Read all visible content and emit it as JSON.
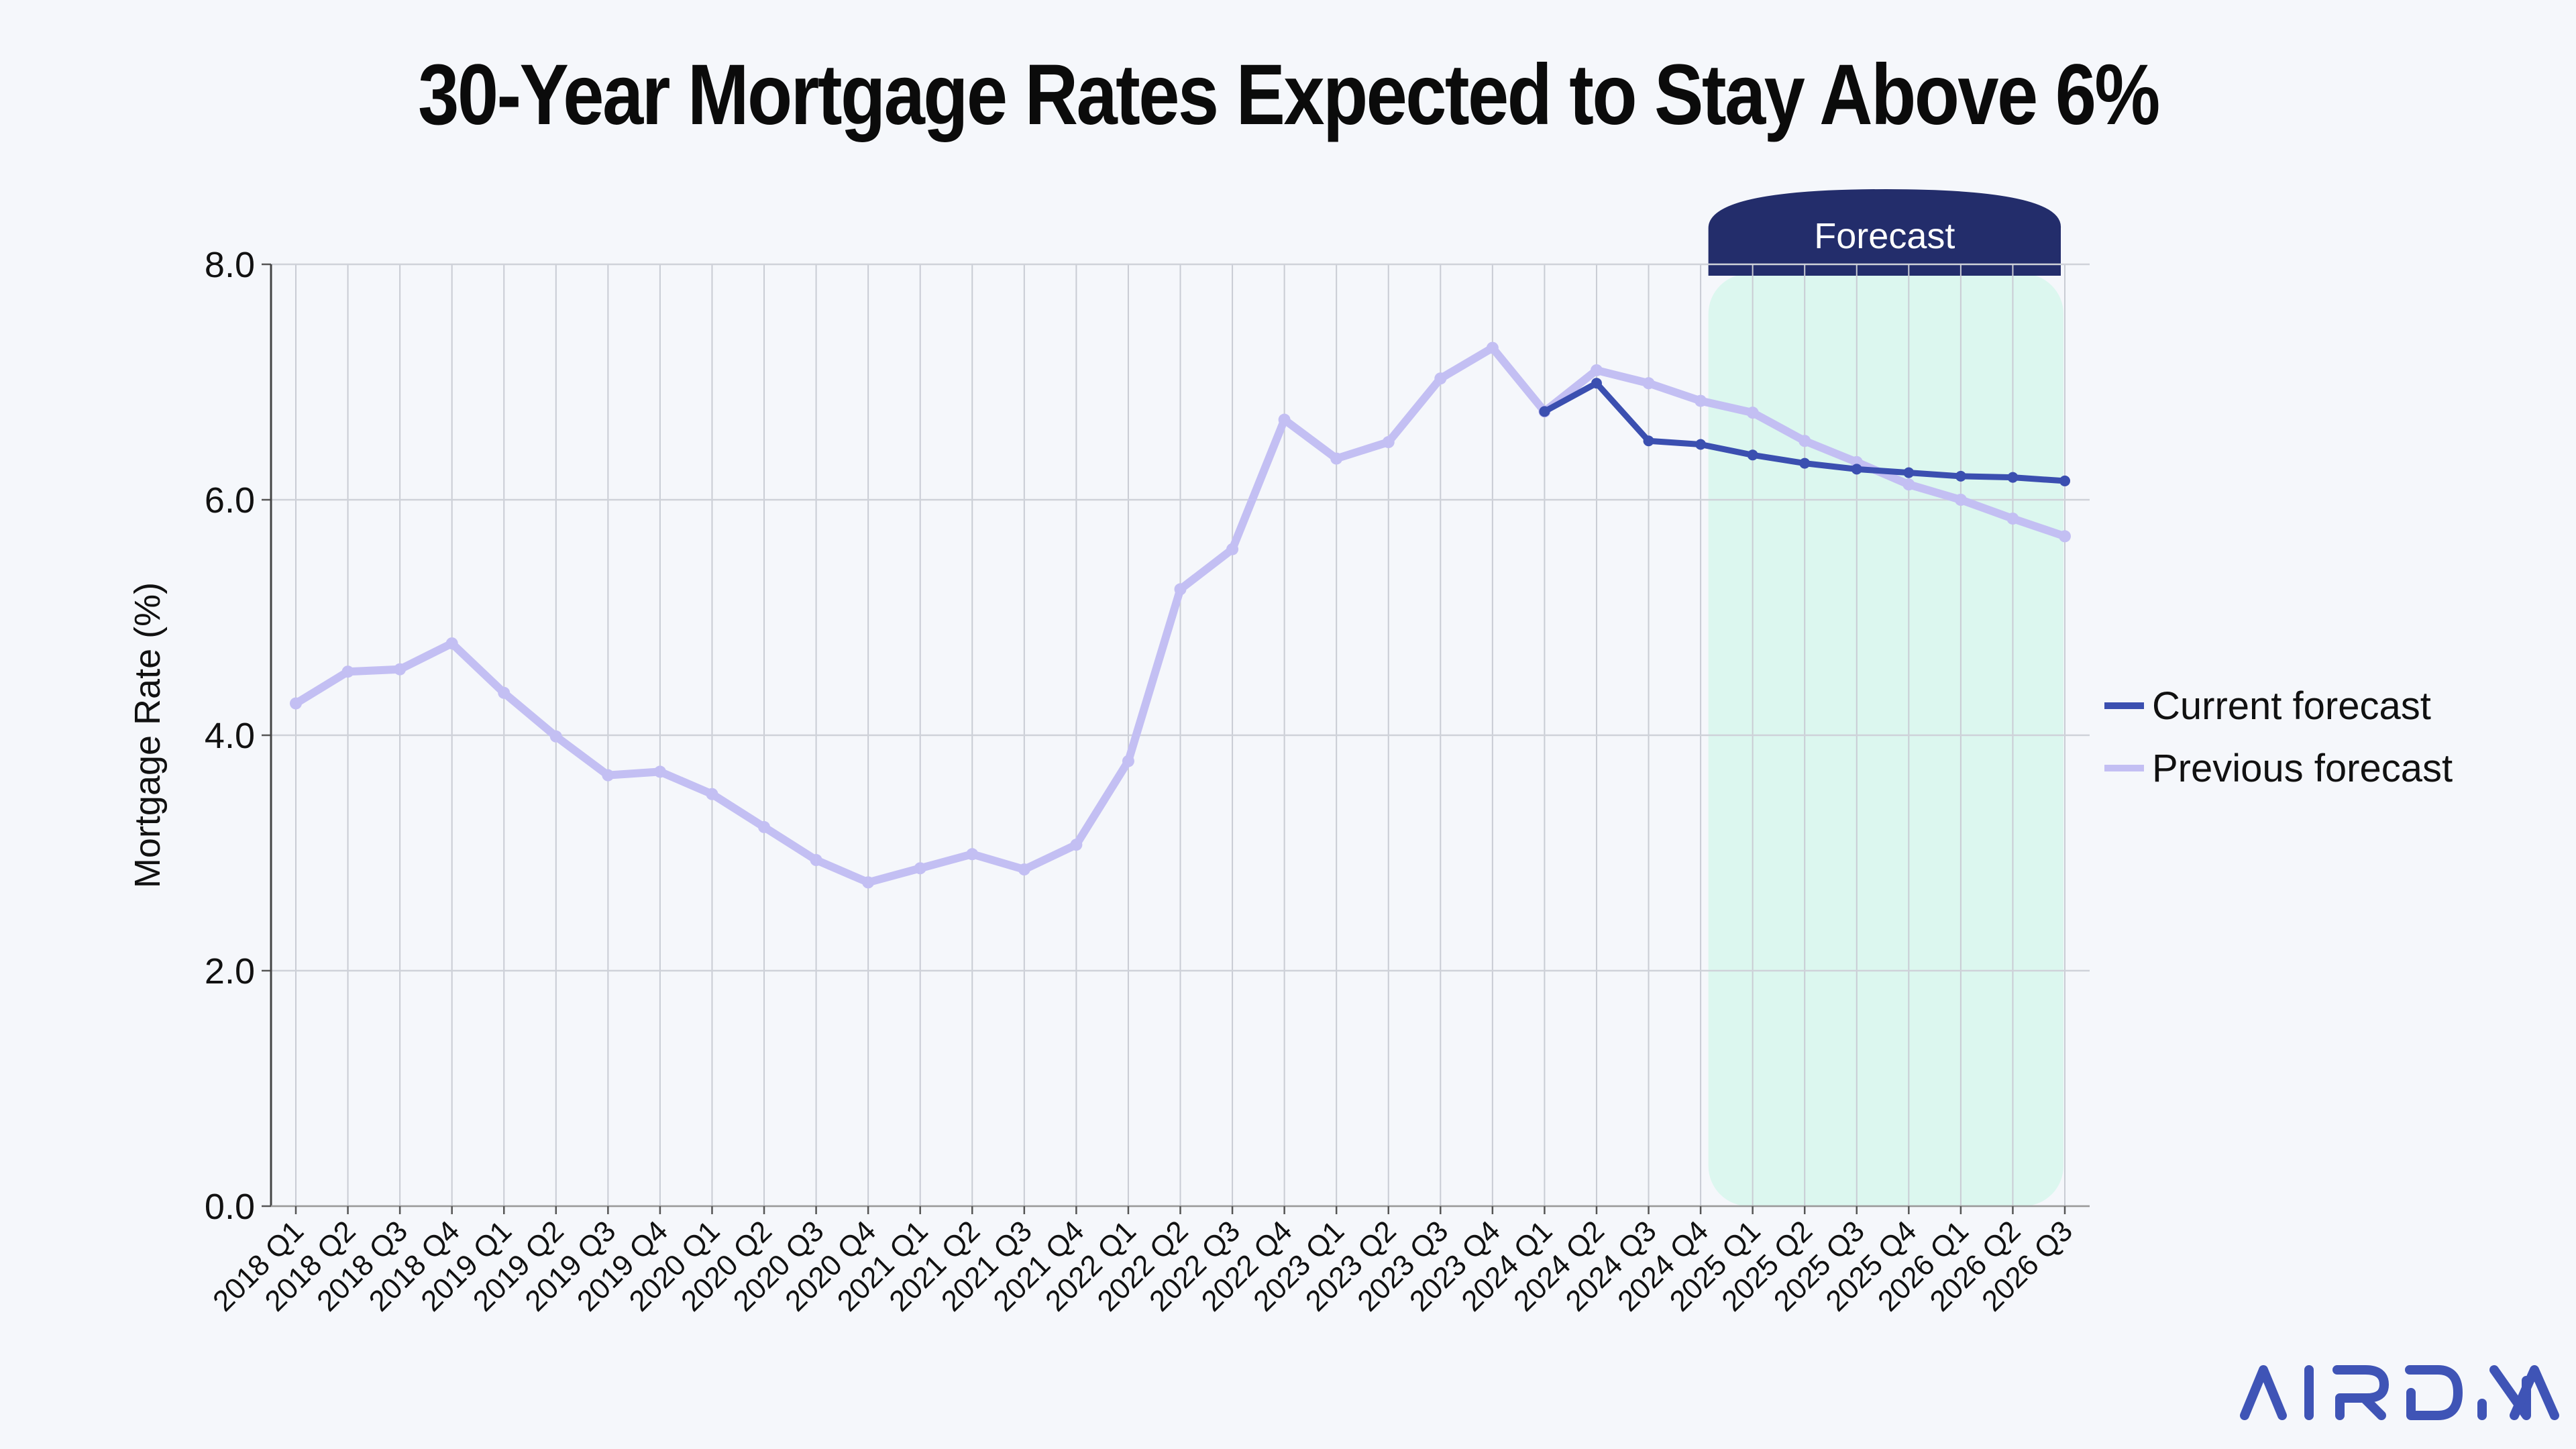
{
  "chart_data": {
    "type": "line",
    "title": "30-Year Mortgage Rates Expected to Stay Above 6%",
    "xlabel": "",
    "ylabel": "Mortgage Rate (%)",
    "ylim": [
      0,
      8
    ],
    "yticks": [
      "0.0",
      "2.0",
      "4.0",
      "6.0",
      "8.0"
    ],
    "grid": true,
    "legend_position": "right",
    "categories": [
      "2018 Q1",
      "2018 Q2",
      "2018 Q3",
      "2018 Q4",
      "2019 Q1",
      "2019 Q2",
      "2019 Q3",
      "2019 Q4",
      "2020 Q1",
      "2020 Q2",
      "2020 Q3",
      "2020 Q4",
      "2021 Q1",
      "2021 Q2",
      "2021 Q3",
      "2021 Q4",
      "2022 Q1",
      "2022 Q2",
      "2022 Q3",
      "2022 Q4",
      "2023 Q1",
      "2023 Q2",
      "2023 Q3",
      "2023 Q4",
      "2024 Q1",
      "2024 Q2",
      "2024 Q3",
      "2024 Q4",
      "2025 Q1",
      "2025 Q2",
      "2025 Q3",
      "2025 Q4",
      "2026 Q1",
      "2026 Q2",
      "2026 Q3"
    ],
    "series": [
      {
        "name": "Previous forecast",
        "color": "#c3bff3",
        "values": [
          4.27,
          4.54,
          4.56,
          4.78,
          4.36,
          3.99,
          3.66,
          3.69,
          3.5,
          3.22,
          2.94,
          2.75,
          2.87,
          2.99,
          2.86,
          3.07,
          3.78,
          5.24,
          5.58,
          6.68,
          6.35,
          6.49,
          7.03,
          7.29,
          6.75,
          7.1,
          6.99,
          6.84,
          6.74,
          6.5,
          6.32,
          6.13,
          6.0,
          5.84,
          5.69
        ]
      },
      {
        "name": "Current forecast",
        "color": "#3b4fb0",
        "values": [
          null,
          null,
          null,
          null,
          null,
          null,
          null,
          null,
          null,
          null,
          null,
          null,
          null,
          null,
          null,
          null,
          null,
          null,
          null,
          null,
          null,
          null,
          null,
          null,
          6.75,
          6.99,
          6.5,
          6.47,
          6.38,
          6.31,
          6.26,
          6.23,
          6.2,
          6.19,
          6.16
        ]
      }
    ],
    "annotation": {
      "label": "Forecast",
      "color": "#232d6b",
      "shade_color": "#dcf7ef"
    }
  },
  "logo": {
    "text": "AIRDNA",
    "color": "#3f54b6"
  }
}
